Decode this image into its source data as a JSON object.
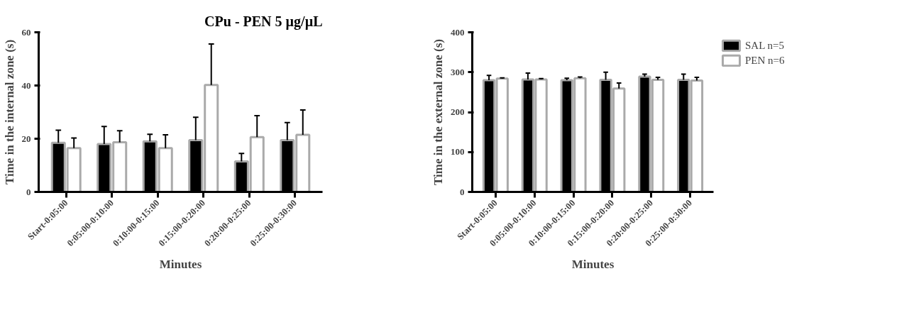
{
  "chart_data": [
    {
      "type": "bar",
      "title": "CPu - PEN 5 µg/µL",
      "xlabel": "Minutes",
      "ylabel": "Time in the internal zone (s)",
      "categories": [
        "Start-0:05:00",
        "0:05:00-0:10:00",
        "0:10:00-0:15:00",
        "0:15:00-0:20:00",
        "0:20:00-0:25:00",
        "0:25:00-0:30:00"
      ],
      "series": [
        {
          "color": "#000000",
          "values": [
            18.5,
            18,
            19,
            19.5,
            11.5,
            19.5
          ],
          "errors": [
            [
              18.5,
              23.2
            ],
            [
              18,
              24.6
            ],
            [
              19,
              21.7
            ],
            [
              19.5,
              28.1
            ],
            [
              11.5,
              14.5
            ],
            [
              19.5,
              26.1
            ]
          ]
        },
        {
          "color": "#ffffff",
          "values": [
            16.5,
            18.7,
            16.5,
            40.2,
            20.6,
            21.5
          ],
          "errors": [
            [
              16.5,
              20.3
            ],
            [
              18.7,
              23
            ],
            [
              16.5,
              21.5
            ],
            [
              40.2,
              55.6
            ],
            [
              20.6,
              28.7
            ],
            [
              21.5,
              30.8
            ]
          ]
        }
      ],
      "ylim": [
        0,
        60
      ],
      "yticks": [
        0,
        20,
        40,
        60
      ],
      "grid": false
    },
    {
      "type": "bar",
      "xlabel": "Minutes",
      "ylabel": "Time in the external zone (s)",
      "categories": [
        "Start-0:05:00",
        "0:05:00-0:10:00",
        "0:10:00-0:15:00",
        "0:15:00-0:20:00",
        "0:20:00-0:25:00",
        "0:25:00-0:30:00"
      ],
      "series": [
        {
          "name": "SAL n=5",
          "color": "#000000",
          "values": [
            280,
            282,
            280,
            281,
            289,
            281
          ],
          "errors": [
            [
              280,
              292
            ],
            [
              282,
              298
            ],
            [
              280,
              285
            ],
            [
              281,
              300
            ],
            [
              289,
              295
            ],
            [
              281,
              295
            ]
          ]
        },
        {
          "name": "PEN n=6",
          "color": "#ffffff",
          "values": [
            284,
            282,
            285,
            259,
            281,
            279
          ],
          "errors": [
            [
              284,
              286
            ],
            [
              282,
              284
            ],
            [
              285,
              288
            ],
            [
              259,
              273
            ],
            [
              281,
              287
            ],
            [
              279,
              287
            ]
          ]
        }
      ],
      "ylim": [
        0,
        400
      ],
      "yticks": [
        0,
        100,
        200,
        300,
        400
      ],
      "grid": false,
      "legend": "top right"
    }
  ]
}
